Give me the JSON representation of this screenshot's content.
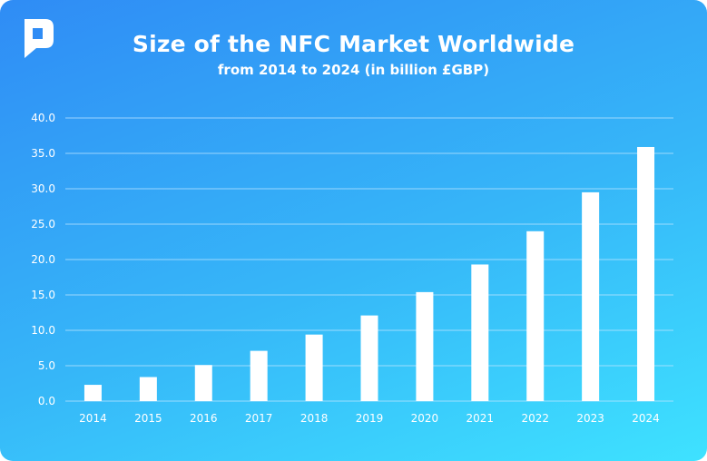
{
  "chart_data": {
    "type": "bar",
    "title": "Size of the NFC Market Worldwide",
    "subtitle": "from 2014 to 2024 (in billion £GBP)",
    "categories": [
      "2014",
      "2015",
      "2016",
      "2017",
      "2018",
      "2019",
      "2020",
      "2021",
      "2022",
      "2023",
      "2024"
    ],
    "values": [
      2.3,
      3.4,
      5.1,
      7.1,
      9.4,
      12.1,
      15.4,
      19.3,
      24.0,
      29.5,
      35.9
    ],
    "y_ticks": [
      "0.0",
      "5.0",
      "10.0",
      "15.0",
      "20.0",
      "25.0",
      "30.0",
      "35.0",
      "40.0"
    ],
    "ylim": [
      0,
      40
    ],
    "grid": true,
    "xlabel": "",
    "ylabel": "",
    "colors": {
      "bar": "#ffffff",
      "grid": "#bfe6ff",
      "text": "#ffffff"
    }
  },
  "brand": {
    "logo_icon": "speech-bubble-logo-icon"
  }
}
